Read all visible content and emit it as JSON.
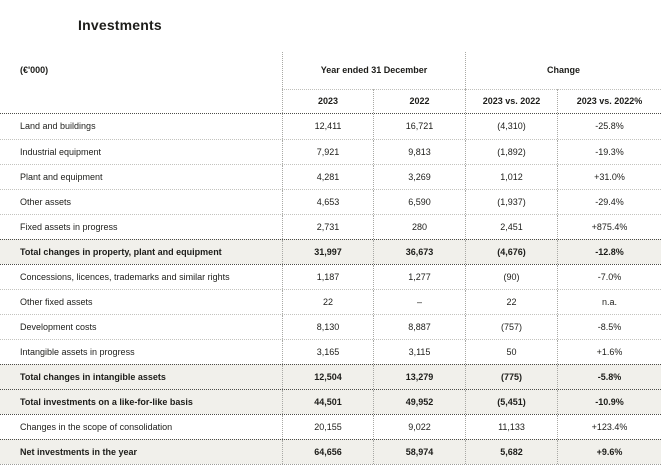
{
  "page_title": "Investments",
  "colors": {
    "emphasis_row_background": "#f1f0eb",
    "text": "#1d1d1a",
    "rule_dark": "#4d4d49",
    "rule_light": "#c3c3bf"
  },
  "table": {
    "unit_label": "(€'000)",
    "col_groups": [
      {
        "label": "Year ended 31 December"
      },
      {
        "label": "Change"
      }
    ],
    "columns": [
      "2023",
      "2022",
      "2023 vs. 2022",
      "2023 vs. 2022%"
    ],
    "rows": [
      {
        "label": "Land and buildings",
        "y2023": "12,411",
        "y2022": "16,721",
        "change": "(4,310)",
        "change_pct": "-25.8%",
        "emphasis": false
      },
      {
        "label": "Industrial equipment",
        "y2023": "7,921",
        "y2022": "9,813",
        "change": "(1,892)",
        "change_pct": "-19.3%",
        "emphasis": false
      },
      {
        "label": "Plant and equipment",
        "y2023": "4,281",
        "y2022": "3,269",
        "change": "1,012",
        "change_pct": "+31.0%",
        "emphasis": false
      },
      {
        "label": "Other assets",
        "y2023": "4,653",
        "y2022": "6,590",
        "change": "(1,937)",
        "change_pct": "-29.4%",
        "emphasis": false
      },
      {
        "label": "Fixed assets in progress",
        "y2023": "2,731",
        "y2022": "280",
        "change": "2,451",
        "change_pct": "+875.4%",
        "emphasis": false
      },
      {
        "label": "Total changes in property, plant and equipment",
        "y2023": "31,997",
        "y2022": "36,673",
        "change": "(4,676)",
        "change_pct": "-12.8%",
        "emphasis": true
      },
      {
        "label": "Concessions, licences, trademarks and similar rights",
        "y2023": "1,187",
        "y2022": "1,277",
        "change": "(90)",
        "change_pct": "-7.0%",
        "emphasis": false
      },
      {
        "label": "Other fixed assets",
        "y2023": "22",
        "y2022": "–",
        "change": "22",
        "change_pct": "n.a.",
        "emphasis": false
      },
      {
        "label": "Development costs",
        "y2023": "8,130",
        "y2022": "8,887",
        "change": "(757)",
        "change_pct": "-8.5%",
        "emphasis": false
      },
      {
        "label": "Intangible assets in progress",
        "y2023": "3,165",
        "y2022": "3,115",
        "change": "50",
        "change_pct": "+1.6%",
        "emphasis": false
      },
      {
        "label": "Total changes in intangible assets",
        "y2023": "12,504",
        "y2022": "13,279",
        "change": "(775)",
        "change_pct": "-5.8%",
        "emphasis": true
      },
      {
        "label": "Total investments on a like-for-like basis",
        "y2023": "44,501",
        "y2022": "49,952",
        "change": "(5,451)",
        "change_pct": "-10.9%",
        "emphasis": true
      },
      {
        "label": "Changes in the scope of consolidation",
        "y2023": "20,155",
        "y2022": "9,022",
        "change": "11,133",
        "change_pct": "+123.4%",
        "emphasis": false
      },
      {
        "label": "Net investments in the year",
        "y2023": "64,656",
        "y2022": "58,974",
        "change": "5,682",
        "change_pct": "+9.6%",
        "emphasis": true
      }
    ]
  }
}
